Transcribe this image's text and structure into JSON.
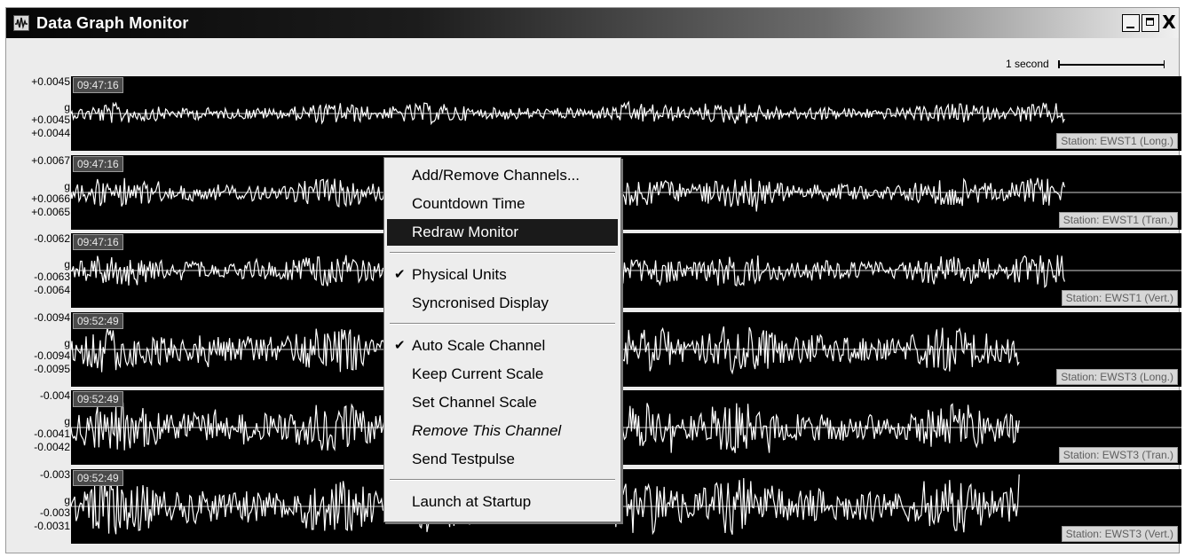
{
  "window": {
    "title": "Data Graph Monitor",
    "app_icon": "waveform-icon"
  },
  "controls": {
    "minimize_icon": "minimize-icon",
    "maximize_icon": "maximize-icon",
    "close_label": "X"
  },
  "scale": {
    "label": "1 second"
  },
  "channels": [
    {
      "y_top": "+0.0045",
      "unit": "g",
      "y_mid": "+0.0045",
      "y_bot": "+0.0044",
      "time": "09:47:16",
      "station": "Station: EWST1 (Long.)",
      "trace_end": 0.895,
      "amplitude": 0.35
    },
    {
      "y_top": "+0.0067",
      "unit": "g",
      "y_mid": "+0.0066",
      "y_bot": "+0.0065",
      "time": "09:47:16",
      "station": "Station: EWST1 (Tran.)",
      "trace_end": 0.895,
      "amplitude": 0.5
    },
    {
      "y_top": "-0.0062",
      "unit": "g",
      "y_mid": "-0.0063",
      "y_bot": "-0.0064",
      "time": "09:47:16",
      "station": "Station: EWST1 (Vert.)",
      "trace_end": 0.895,
      "amplitude": 0.55
    },
    {
      "y_top": "-0.0094",
      "unit": "g",
      "y_mid": "-0.0094",
      "y_bot": "-0.0095",
      "time": "09:52:49",
      "station": "Station: EWST3 (Long.)",
      "trace_end": 0.855,
      "amplitude": 0.8
    },
    {
      "y_top": "-0.004",
      "unit": "g",
      "y_mid": "-0.0041",
      "y_bot": "-0.0042",
      "time": "09:52:49",
      "station": "Station: EWST3 (Tran.)",
      "trace_end": 0.855,
      "amplitude": 0.85
    },
    {
      "y_top": "-0.003",
      "unit": "g",
      "y_mid": "-0.003",
      "y_bot": "-0.0031",
      "time": "09:52:49",
      "station": "Station: EWST3 (Vert.)",
      "trace_end": 0.855,
      "amplitude": 0.95
    }
  ],
  "menu": {
    "items": [
      {
        "label": "Add/Remove Channels...",
        "checked": false
      },
      {
        "label": "Countdown Time",
        "checked": false
      },
      {
        "label": "Redraw Monitor",
        "checked": false,
        "highlighted": true
      },
      {
        "label": "Physical Units",
        "checked": true
      },
      {
        "label": "Syncronised Display",
        "checked": false
      },
      {
        "label": "Auto Scale Channel",
        "checked": true
      },
      {
        "label": "Keep Current Scale",
        "checked": false
      },
      {
        "label": "Set Channel Scale",
        "checked": false
      },
      {
        "label": "Remove This Channel",
        "checked": false,
        "italic": true
      },
      {
        "label": "Send Testpulse",
        "checked": false
      },
      {
        "label": "Launch at Startup",
        "checked": false
      }
    ],
    "check_glyph": "✔"
  }
}
